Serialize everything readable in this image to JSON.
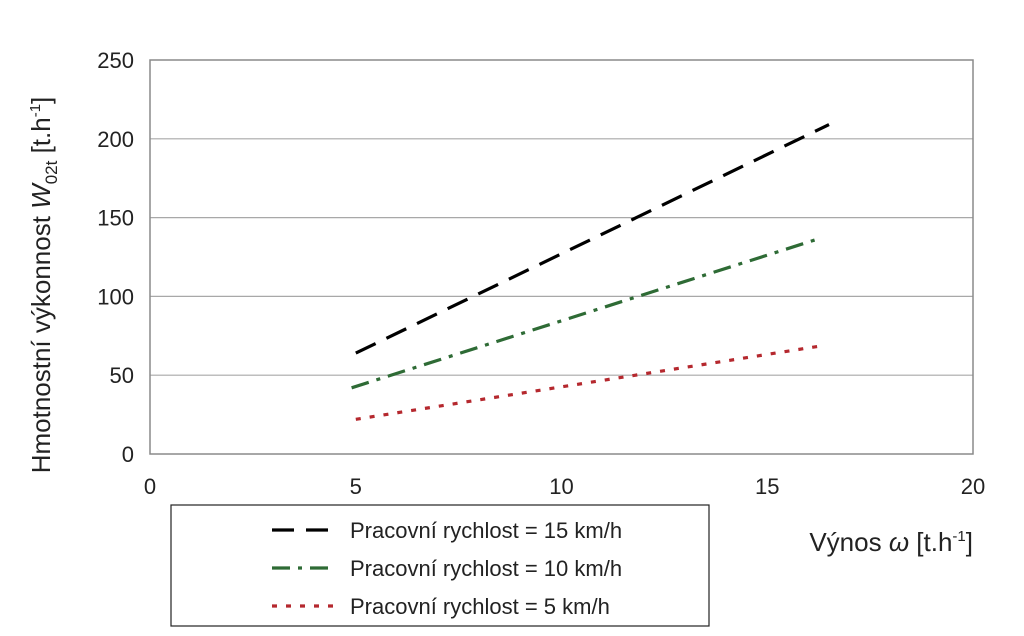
{
  "chart_data": {
    "type": "line",
    "xlabel": {
      "main": "Výnos ",
      "symbol": "ω",
      "unit": " [t.h",
      "sup": "-1",
      "close": "]"
    },
    "ylabel": {
      "main": "Hmotnostní  výkonnost ",
      "symbol": "W",
      "sub": "02t",
      "unit": " [t.h",
      "sup": "-1",
      "close": "]"
    },
    "xlim": [
      0,
      20
    ],
    "ylim": [
      0,
      250
    ],
    "xticks": [
      "0",
      "5",
      "10",
      "15",
      "20"
    ],
    "yticks": [
      "0",
      "50",
      "100",
      "150",
      "200",
      "250"
    ],
    "grid": "horizontal",
    "legend_position": "bottom-left",
    "series": [
      {
        "name": "Pracovní rychlost = 15 km/h",
        "color": "#000000",
        "style": "dash",
        "x": [
          5,
          16.5
        ],
        "y": [
          64,
          209
        ]
      },
      {
        "name": "Pracovní rychlost = 10 km/h",
        "color": "#2e6b35",
        "style": "dashdot",
        "x": [
          4.9,
          16.3
        ],
        "y": [
          42,
          137
        ]
      },
      {
        "name": "Pracovní rychlost = 5 km/h",
        "color": "#b5282e",
        "style": "dot",
        "x": [
          5,
          16.4
        ],
        "y": [
          22,
          69
        ]
      }
    ]
  }
}
